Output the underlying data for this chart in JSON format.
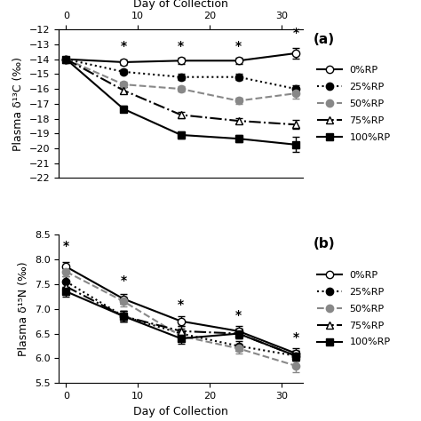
{
  "days": [
    0,
    8,
    16,
    24,
    32
  ],
  "panel_a": {
    "ylabel": "Plasma δ¹³C (‰)",
    "ylim": [
      -22,
      -12
    ],
    "yticks": [
      -22,
      -21,
      -20,
      -19,
      -18,
      -17,
      -16,
      -15,
      -14,
      -13,
      -12
    ],
    "series": [
      {
        "label": "0%RP",
        "y": [
          -14.0,
          -14.2,
          -14.1,
          -14.1,
          -13.6
        ],
        "yerr": [
          0.15,
          0.2,
          0.2,
          0.2,
          0.35
        ],
        "color": "#000000",
        "linestyle": "-",
        "marker": "o",
        "markerfacecolor": "white",
        "markersize": 6
      },
      {
        "label": "25%RP",
        "y": [
          -14.0,
          -14.85,
          -15.2,
          -15.2,
          -16.0
        ],
        "yerr": [
          0.15,
          0.15,
          0.2,
          0.2,
          0.25
        ],
        "color": "#000000",
        "linestyle": ":",
        "marker": "o",
        "markerfacecolor": "black",
        "markersize": 6
      },
      {
        "label": "50%RP",
        "y": [
          -14.0,
          -15.7,
          -16.0,
          -16.8,
          -16.3
        ],
        "yerr": [
          0.15,
          0.2,
          0.2,
          0.2,
          0.35
        ],
        "color": "#888888",
        "linestyle": "--",
        "marker": "o",
        "markerfacecolor": "#888888",
        "markersize": 6
      },
      {
        "label": "75%RP",
        "y": [
          -14.0,
          -16.1,
          -17.75,
          -18.15,
          -18.4
        ],
        "yerr": [
          0.15,
          0.2,
          0.2,
          0.2,
          0.3
        ],
        "color": "#000000",
        "linestyle": "-.",
        "marker": "^",
        "markerfacecolor": "white",
        "markersize": 6
      },
      {
        "label": "100%RP",
        "y": [
          -14.0,
          -17.35,
          -19.1,
          -19.35,
          -19.75
        ],
        "yerr": [
          0.15,
          0.2,
          0.25,
          0.25,
          0.5
        ],
        "color": "#000000",
        "linestyle": "-",
        "marker": "s",
        "markerfacecolor": "black",
        "markersize": 6
      }
    ],
    "star_positions": [
      {
        "day": 8,
        "y": -13.55
      },
      {
        "day": 16,
        "y": -13.55
      },
      {
        "day": 24,
        "y": -13.55
      },
      {
        "day": 32,
        "y": -12.65
      }
    ],
    "panel_label": "(a)"
  },
  "panel_b": {
    "ylabel": "Plasma δ¹⁵N (‰)",
    "ylim": [
      5.5,
      8.5
    ],
    "yticks": [
      5.5,
      6.0,
      6.5,
      7.0,
      7.5,
      8.0,
      8.5
    ],
    "series": [
      {
        "label": "0%RP",
        "y": [
          7.85,
          7.2,
          6.75,
          6.55,
          6.1
        ],
        "yerr": [
          0.1,
          0.1,
          0.1,
          0.1,
          0.1
        ],
        "color": "#000000",
        "linestyle": "-",
        "marker": "o",
        "markerfacecolor": "white",
        "markersize": 6
      },
      {
        "label": "25%RP",
        "y": [
          7.55,
          6.85,
          6.5,
          6.25,
          6.05
        ],
        "yerr": [
          0.1,
          0.1,
          0.1,
          0.1,
          0.1
        ],
        "color": "#000000",
        "linestyle": ":",
        "marker": "o",
        "markerfacecolor": "black",
        "markersize": 6
      },
      {
        "label": "50%RP",
        "y": [
          7.75,
          7.15,
          6.45,
          6.2,
          5.85
        ],
        "yerr": [
          0.1,
          0.1,
          0.1,
          0.1,
          0.12
        ],
        "color": "#888888",
        "linestyle": "--",
        "marker": "o",
        "markerfacecolor": "#888888",
        "markersize": 6
      },
      {
        "label": "75%RP",
        "y": [
          7.45,
          6.85,
          6.55,
          6.5,
          6.05
        ],
        "yerr": [
          0.1,
          0.1,
          0.1,
          0.1,
          0.1
        ],
        "color": "#000000",
        "linestyle": "-.",
        "marker": "^",
        "markerfacecolor": "white",
        "markersize": 6
      },
      {
        "label": "100%RP",
        "y": [
          7.35,
          6.85,
          6.4,
          6.5,
          6.05
        ],
        "yerr": [
          0.1,
          0.1,
          0.1,
          0.1,
          0.1
        ],
        "color": "#000000",
        "linestyle": "-",
        "marker": "s",
        "markerfacecolor": "black",
        "markersize": 6
      }
    ],
    "star_positions": [
      {
        "day": 0,
        "y": 8.15
      },
      {
        "day": 8,
        "y": 7.45
      },
      {
        "day": 16,
        "y": 6.95
      },
      {
        "day": 24,
        "y": 6.75
      },
      {
        "day": 32,
        "y": 6.3
      }
    ],
    "panel_label": "(b)"
  },
  "xlabel": "Day of Collection",
  "top_xlabel": "Day of Collection",
  "xticks": [
    0,
    10,
    20,
    30
  ],
  "linewidth": 1.5,
  "capsize": 3,
  "elinewidth": 1.0,
  "legend_fontsize": 8,
  "tick_fontsize": 8,
  "label_fontsize": 9,
  "panel_label_fontsize": 11
}
